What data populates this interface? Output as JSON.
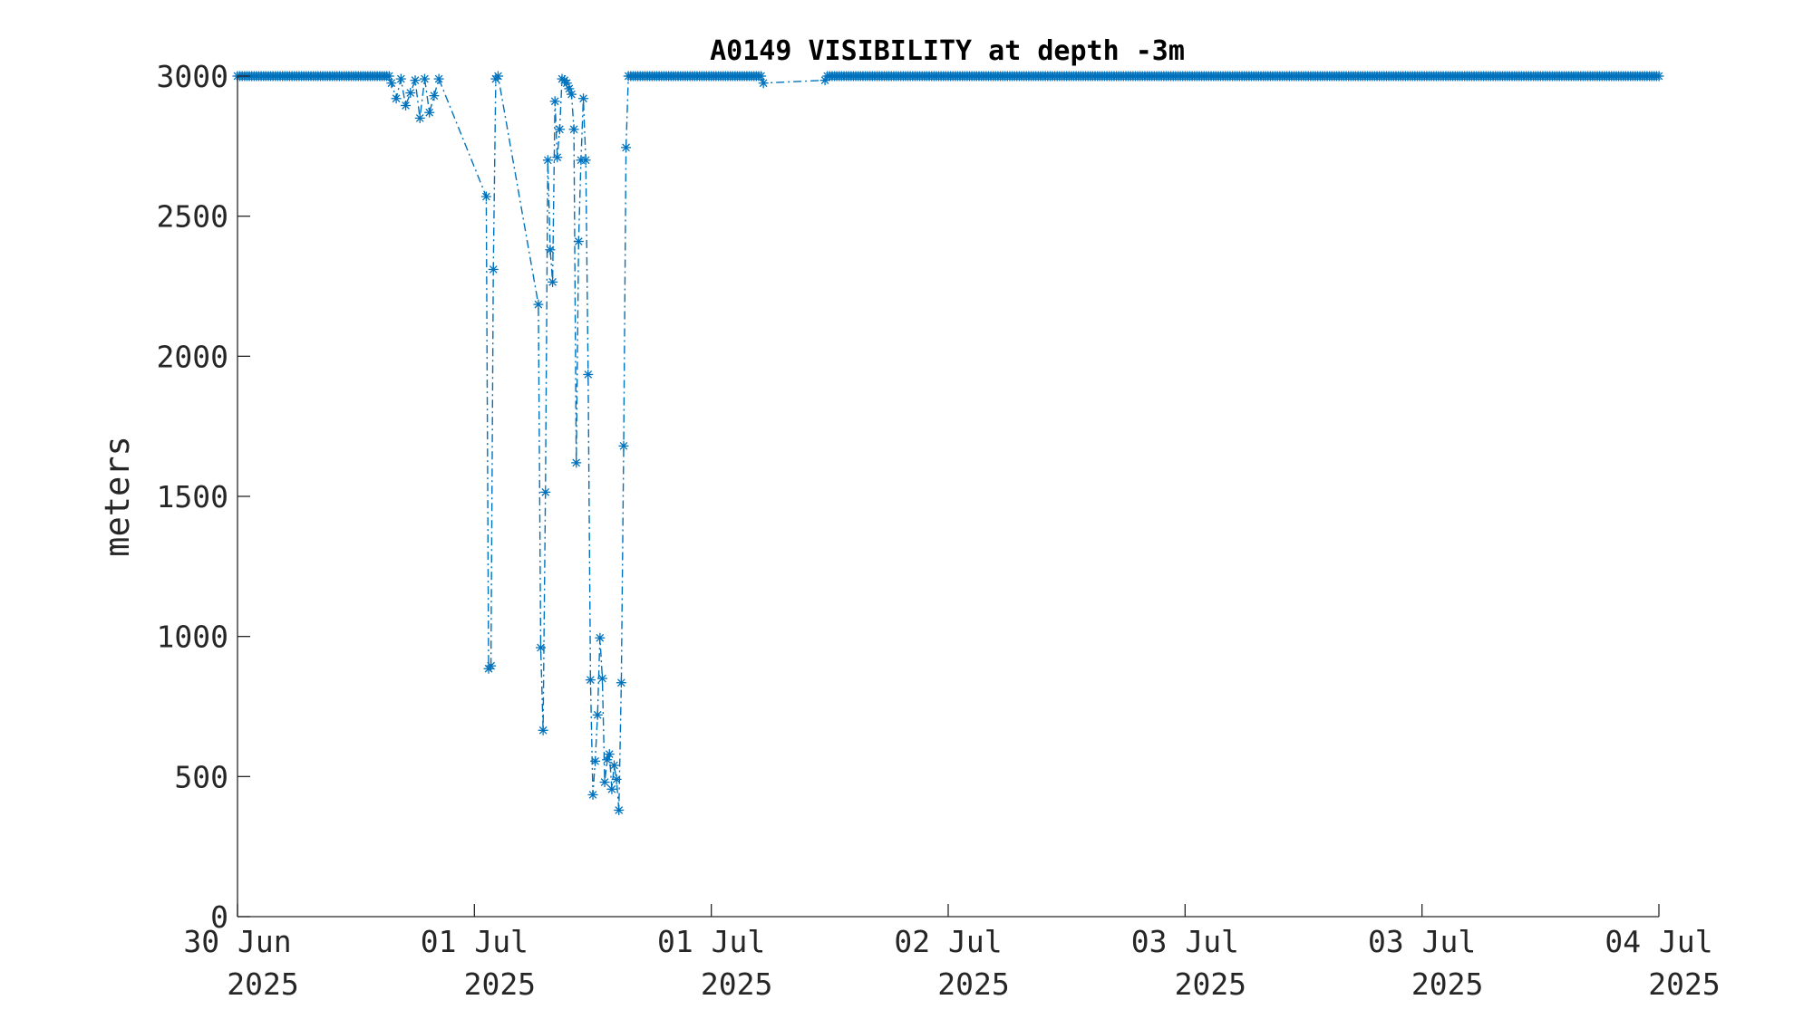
{
  "chart_data": {
    "type": "line",
    "title": "A0149 VISIBILITY at depth -3m",
    "xlabel": "",
    "ylabel": "meters",
    "ylim": [
      0,
      3000
    ],
    "xlim": [
      0,
      6
    ],
    "grid": false,
    "color": "#0072BD",
    "line_style": "dash-dot",
    "marker": "asterisk",
    "yticks": [
      {
        "value": 0,
        "label": "0"
      },
      {
        "value": 500,
        "label": "500"
      },
      {
        "value": 1000,
        "label": "1000"
      },
      {
        "value": 1500,
        "label": "1500"
      },
      {
        "value": 2000,
        "label": "2000"
      },
      {
        "value": 2500,
        "label": "2500"
      },
      {
        "value": 3000,
        "label": "3000"
      }
    ],
    "xticks": [
      {
        "value": 0,
        "line1": "30 Jun",
        "line2": "2025"
      },
      {
        "value": 1,
        "line1": "01 Jul",
        "line2": "2025"
      },
      {
        "value": 2,
        "line1": "01 Jul",
        "line2": "2025"
      },
      {
        "value": 3,
        "line1": "02 Jul",
        "line2": "2025"
      },
      {
        "value": 4,
        "line1": "03 Jul",
        "line2": "2025"
      },
      {
        "value": 5,
        "line1": "03 Jul",
        "line2": "2025"
      },
      {
        "value": 6,
        "line1": "04 Jul",
        "line2": "2025"
      }
    ],
    "series": [
      {
        "x": [
          0.65,
          0.67,
          0.69,
          0.71,
          0.73,
          0.75,
          0.77,
          0.79,
          0.81,
          0.83,
          0.85,
          1.05,
          1.06,
          1.07,
          1.08,
          1.09,
          1.1,
          1.27,
          1.28,
          1.29,
          1.3,
          1.31,
          1.32,
          1.33,
          1.34,
          1.35,
          1.36,
          1.37,
          1.38,
          1.39,
          1.4,
          1.41,
          1.42,
          1.43,
          1.44,
          1.45,
          1.46,
          1.47,
          1.48,
          1.49,
          1.5,
          1.51,
          1.52,
          1.53,
          1.54,
          1.55,
          1.56,
          1.57,
          1.58,
          1.59,
          1.6,
          1.61,
          1.62,
          1.63,
          1.64,
          1.65,
          1.66,
          1.67,
          1.68,
          1.69,
          2.22,
          2.48
        ],
        "y": [
          2975,
          2920,
          2990,
          2895,
          2940,
          2985,
          2850,
          2990,
          2870,
          2930,
          2990,
          2570,
          885,
          895,
          2310,
          2990,
          3000,
          2185,
          960,
          665,
          1515,
          2700,
          2380,
          2265,
          2910,
          2710,
          2810,
          2990,
          2985,
          2975,
          2955,
          2935,
          2810,
          1620,
          2410,
          2700,
          2920,
          2700,
          1935,
          845,
          435,
          555,
          720,
          995,
          850,
          480,
          560,
          580,
          455,
          540,
          490,
          380,
          835,
          1680,
          2745,
          3000,
          3000,
          3000,
          3000,
          3000,
          2975,
          2985
        ]
      }
    ]
  }
}
